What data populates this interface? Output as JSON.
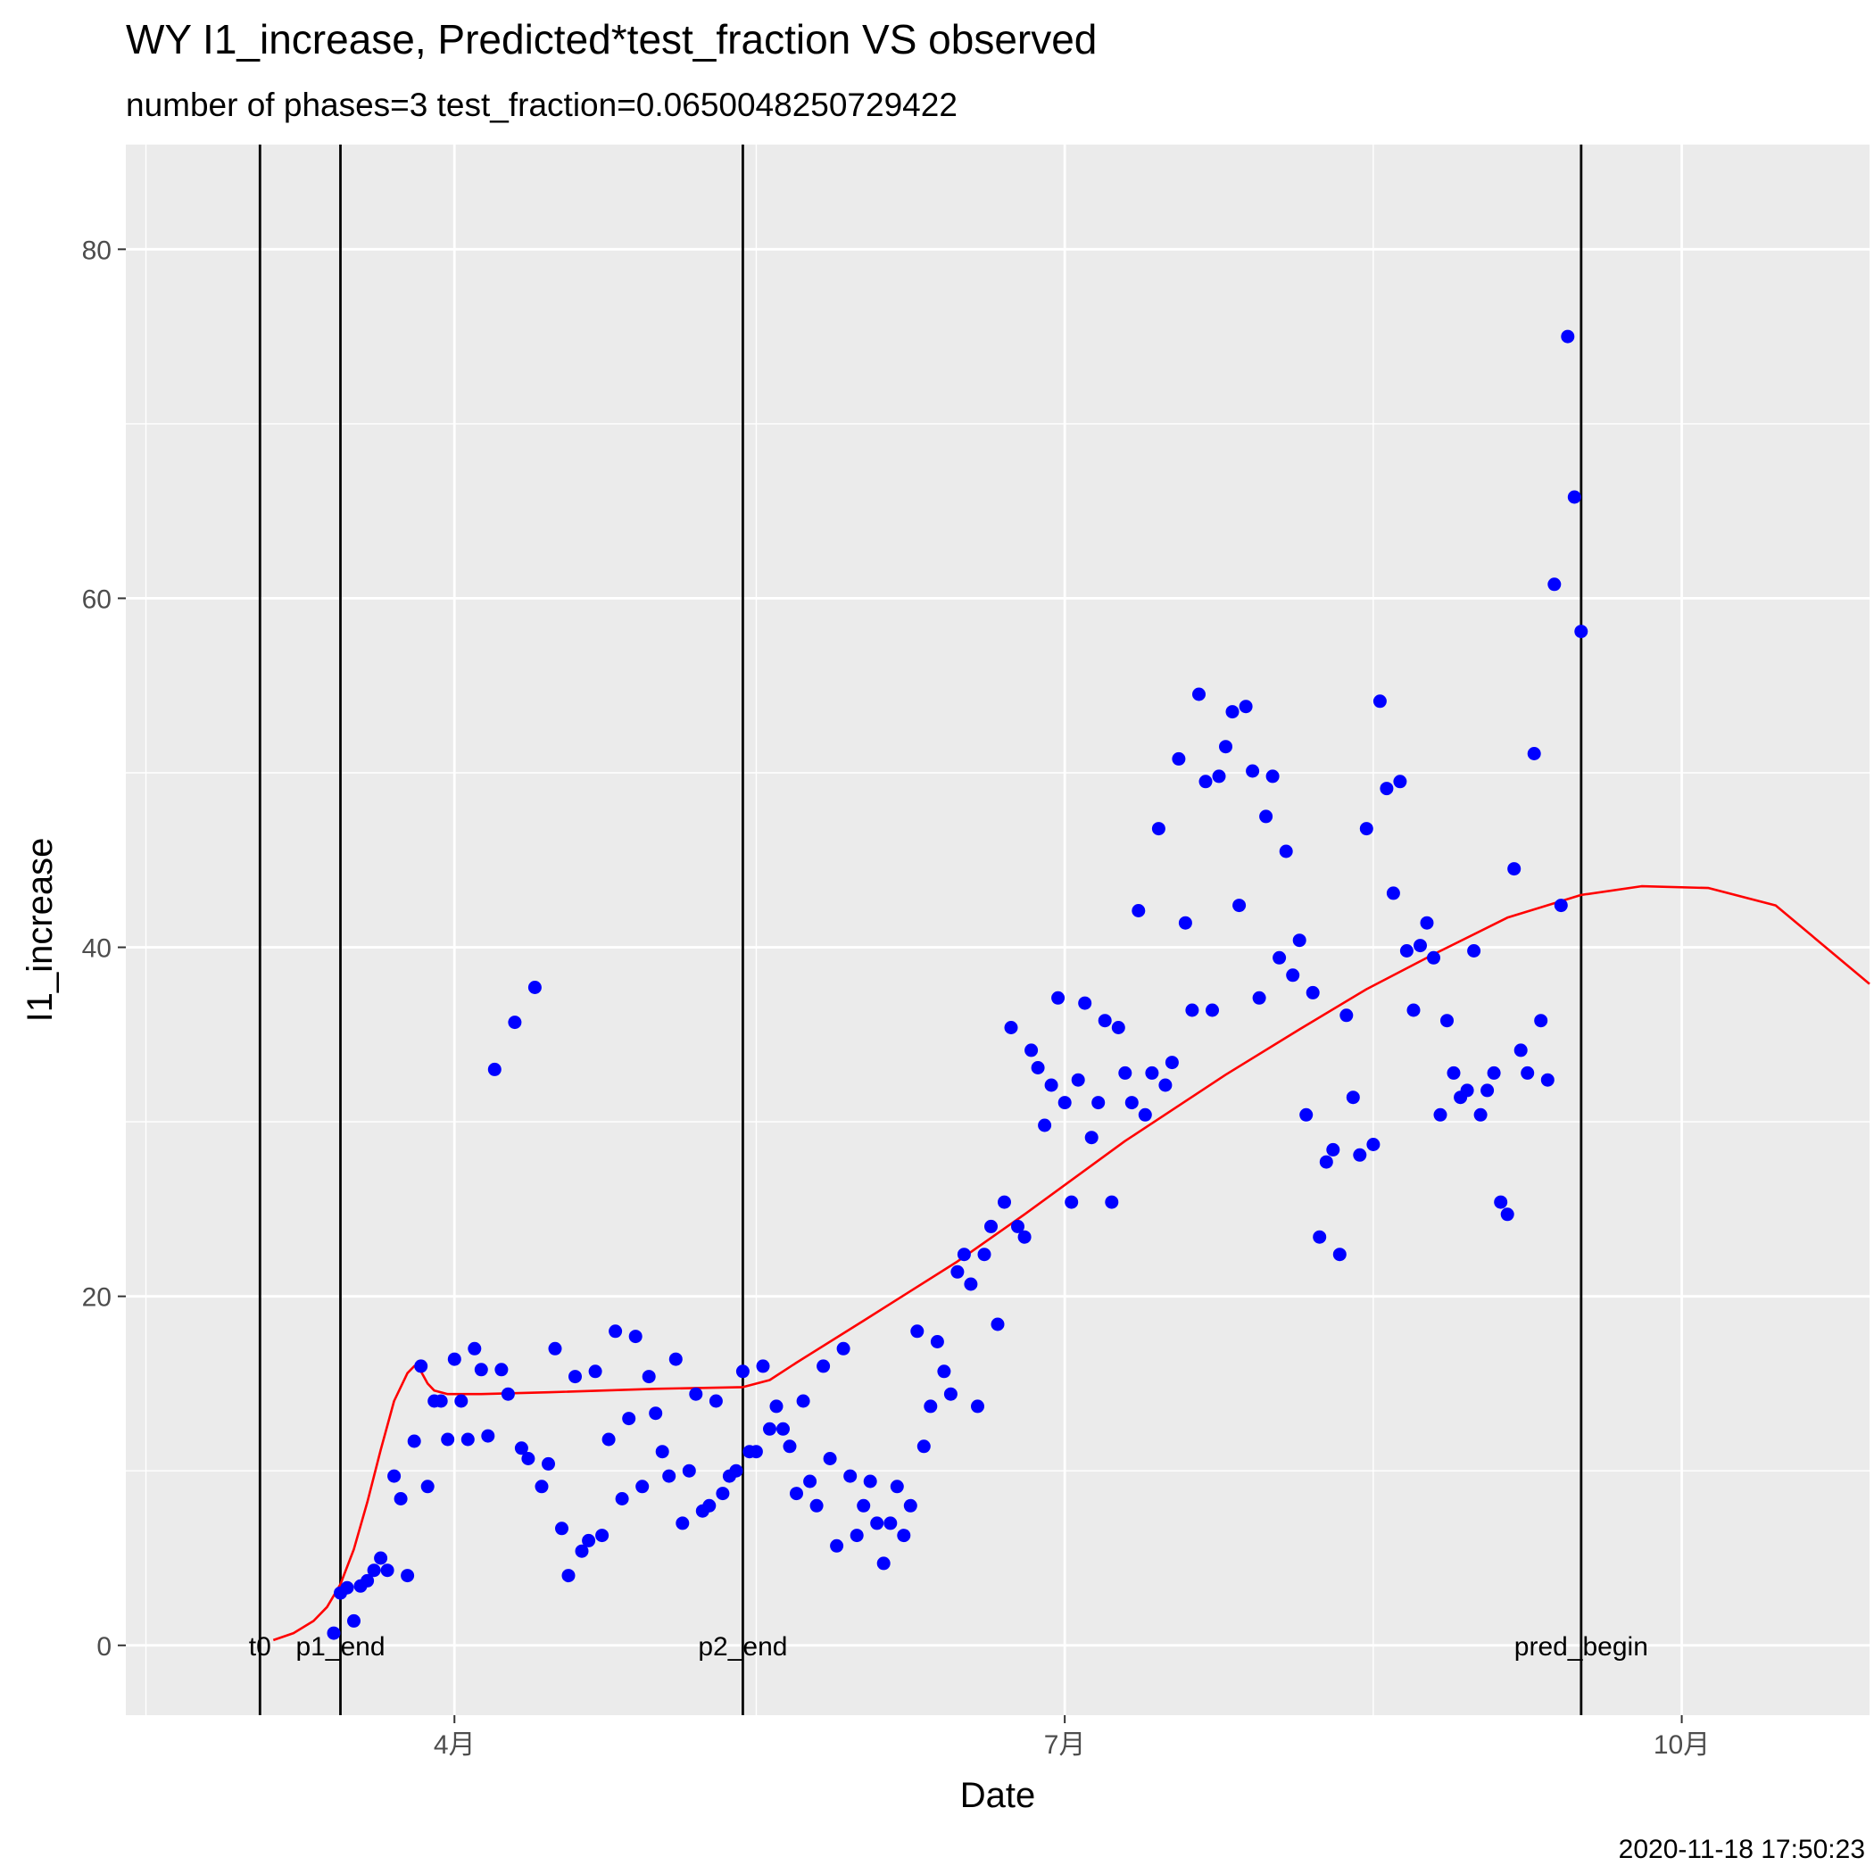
{
  "chart_data": {
    "type": "scatter",
    "title": "WY I1_increase, Predicted*test_fraction VS observed",
    "subtitle": "number of phases=3   test_fraction=0.0650048250729422",
    "xlabel": "Date",
    "ylabel": "I1_increase",
    "caption": "2020-11-18 17:50:23",
    "xlim": [
      "2020-02-12",
      "2020-10-29"
    ],
    "ylim": [
      -4,
      86
    ],
    "grid": true,
    "legend": "none",
    "x_ticks": [
      {
        "date": "2020-04-01",
        "label": "4月"
      },
      {
        "date": "2020-07-01",
        "label": "7月"
      },
      {
        "date": "2020-10-01",
        "label": "10月"
      }
    ],
    "x_minor_ticks": [
      "2020-02-15",
      "2020-05-16",
      "2020-08-16"
    ],
    "y_ticks": [
      0,
      20,
      40,
      60,
      80
    ],
    "y_minor_ticks": [
      10,
      30,
      50,
      70
    ],
    "colors": {
      "panel": "#ebebeb",
      "grid": "#ffffff",
      "observed": "#0000ff",
      "predicted": "#ff0000",
      "phase_line": "#000000"
    },
    "phase_lines": [
      {
        "date": "2020-03-03",
        "label": "t0"
      },
      {
        "date": "2020-03-15",
        "label": "p1_end"
      },
      {
        "date": "2020-05-14",
        "label": "p2_end"
      },
      {
        "date": "2020-09-16",
        "label": "pred_begin"
      }
    ],
    "predicted": {
      "date": [
        "2020-03-05",
        "2020-03-08",
        "2020-03-11",
        "2020-03-13",
        "2020-03-15",
        "2020-03-17",
        "2020-03-19",
        "2020-03-21",
        "2020-03-23",
        "2020-03-25",
        "2020-03-26",
        "2020-03-27",
        "2020-03-28",
        "2020-03-29",
        "2020-03-31",
        "2020-04-05",
        "2020-04-15",
        "2020-05-01",
        "2020-05-14",
        "2020-05-18",
        "2020-05-22",
        "2020-06-01",
        "2020-06-15",
        "2020-06-25",
        "2020-07-10",
        "2020-07-25",
        "2020-08-05",
        "2020-08-15",
        "2020-08-25",
        "2020-09-05",
        "2020-09-16",
        "2020-09-25",
        "2020-10-05",
        "2020-10-15",
        "2020-10-29"
      ],
      "value": [
        0.3,
        0.7,
        1.4,
        2.2,
        3.5,
        5.5,
        8.2,
        11.2,
        14.0,
        15.6,
        16.0,
        15.7,
        15.0,
        14.6,
        14.4,
        14.4,
        14.5,
        14.7,
        14.8,
        15.2,
        16.2,
        18.6,
        22.0,
        24.7,
        28.9,
        32.7,
        35.3,
        37.6,
        39.6,
        41.7,
        43.0,
        43.5,
        43.4,
        42.4,
        37.9
      ]
    },
    "observed": {
      "date": [
        "2020-03-14",
        "2020-03-15",
        "2020-03-16",
        "2020-03-17",
        "2020-03-18",
        "2020-03-19",
        "2020-03-20",
        "2020-03-21",
        "2020-03-22",
        "2020-03-23",
        "2020-03-24",
        "2020-03-25",
        "2020-03-26",
        "2020-03-27",
        "2020-03-28",
        "2020-03-29",
        "2020-03-30",
        "2020-03-31",
        "2020-04-01",
        "2020-04-02",
        "2020-04-03",
        "2020-04-04",
        "2020-04-05",
        "2020-04-06",
        "2020-04-07",
        "2020-04-08",
        "2020-04-09",
        "2020-04-10",
        "2020-04-11",
        "2020-04-12",
        "2020-04-13",
        "2020-04-14",
        "2020-04-15",
        "2020-04-16",
        "2020-04-17",
        "2020-04-18",
        "2020-04-19",
        "2020-04-20",
        "2020-04-21",
        "2020-04-22",
        "2020-04-23",
        "2020-04-24",
        "2020-04-25",
        "2020-04-26",
        "2020-04-27",
        "2020-04-28",
        "2020-04-29",
        "2020-04-30",
        "2020-05-01",
        "2020-05-02",
        "2020-05-03",
        "2020-05-04",
        "2020-05-05",
        "2020-05-06",
        "2020-05-07",
        "2020-05-08",
        "2020-05-09",
        "2020-05-10",
        "2020-05-11",
        "2020-05-12",
        "2020-05-13",
        "2020-05-14",
        "2020-05-15",
        "2020-05-16",
        "2020-05-17",
        "2020-05-18",
        "2020-05-19",
        "2020-05-20",
        "2020-05-21",
        "2020-05-22",
        "2020-05-23",
        "2020-05-24",
        "2020-05-25",
        "2020-05-26",
        "2020-05-27",
        "2020-05-28",
        "2020-05-29",
        "2020-05-30",
        "2020-05-31",
        "2020-06-01",
        "2020-06-02",
        "2020-06-03",
        "2020-06-04",
        "2020-06-05",
        "2020-06-06",
        "2020-06-07",
        "2020-06-08",
        "2020-06-09",
        "2020-06-10",
        "2020-06-11",
        "2020-06-12",
        "2020-06-13",
        "2020-06-14",
        "2020-06-15",
        "2020-06-16",
        "2020-06-17",
        "2020-06-18",
        "2020-06-19",
        "2020-06-20",
        "2020-06-21",
        "2020-06-22",
        "2020-06-23",
        "2020-06-24",
        "2020-06-25",
        "2020-06-26",
        "2020-06-27",
        "2020-06-28",
        "2020-06-29",
        "2020-06-30",
        "2020-07-01",
        "2020-07-02",
        "2020-07-03",
        "2020-07-04",
        "2020-07-05",
        "2020-07-06",
        "2020-07-07",
        "2020-07-08",
        "2020-07-09",
        "2020-07-10",
        "2020-07-11",
        "2020-07-12",
        "2020-07-13",
        "2020-07-14",
        "2020-07-15",
        "2020-07-16",
        "2020-07-17",
        "2020-07-18",
        "2020-07-19",
        "2020-07-20",
        "2020-07-21",
        "2020-07-22",
        "2020-07-23",
        "2020-07-24",
        "2020-07-25",
        "2020-07-26",
        "2020-07-27",
        "2020-07-28",
        "2020-07-29",
        "2020-07-30",
        "2020-07-31",
        "2020-08-01",
        "2020-08-02",
        "2020-08-03",
        "2020-08-04",
        "2020-08-05",
        "2020-08-06",
        "2020-08-07",
        "2020-08-08",
        "2020-08-09",
        "2020-08-10",
        "2020-08-11",
        "2020-08-12",
        "2020-08-13",
        "2020-08-14",
        "2020-08-15",
        "2020-08-16",
        "2020-08-17",
        "2020-08-18",
        "2020-08-19",
        "2020-08-20",
        "2020-08-21",
        "2020-08-22",
        "2020-08-23",
        "2020-08-24",
        "2020-08-25",
        "2020-08-26",
        "2020-08-27",
        "2020-08-28",
        "2020-08-29",
        "2020-08-30",
        "2020-08-31",
        "2020-09-01",
        "2020-09-02",
        "2020-09-03",
        "2020-09-04",
        "2020-09-05",
        "2020-09-06",
        "2020-09-07",
        "2020-09-08",
        "2020-09-09",
        "2020-09-10",
        "2020-09-11",
        "2020-09-12",
        "2020-09-13",
        "2020-09-14",
        "2020-09-15",
        "2020-09-16"
      ],
      "value": [
        0.7,
        3.0,
        3.3,
        1.4,
        3.4,
        3.7,
        4.3,
        5.0,
        4.3,
        9.7,
        8.4,
        4.0,
        11.7,
        16.0,
        9.1,
        14.0,
        14.0,
        11.8,
        16.4,
        14.0,
        11.8,
        17.0,
        15.8,
        12.0,
        33.0,
        15.8,
        14.4,
        35.7,
        11.3,
        10.7,
        37.7,
        9.1,
        10.4,
        17.0,
        6.7,
        4.0,
        15.4,
        5.4,
        6.0,
        15.7,
        6.3,
        11.8,
        18.0,
        8.4,
        13.0,
        17.7,
        9.1,
        15.4,
        13.3,
        11.1,
        9.7,
        16.4,
        7.0,
        10.0,
        14.4,
        7.7,
        8.0,
        14.0,
        8.7,
        9.7,
        10.0,
        15.7,
        11.1,
        11.1,
        16.0,
        12.4,
        13.7,
        12.4,
        11.4,
        8.7,
        14.0,
        9.4,
        8.0,
        16.0,
        10.7,
        5.7,
        17.0,
        9.7,
        6.3,
        8.0,
        9.4,
        7.0,
        4.7,
        7.0,
        9.1,
        6.3,
        8.0,
        18.0,
        11.4,
        13.7,
        17.4,
        15.7,
        14.4,
        21.4,
        22.4,
        20.7,
        13.7,
        22.4,
        24.0,
        18.4,
        25.4,
        35.4,
        24.0,
        23.4,
        34.1,
        33.1,
        29.8,
        32.1,
        37.1,
        31.1,
        25.4,
        32.4,
        36.8,
        29.1,
        31.1,
        35.8,
        25.4,
        35.4,
        32.8,
        31.1,
        42.1,
        30.4,
        32.8,
        46.8,
        32.1,
        33.4,
        50.8,
        41.4,
        36.4,
        54.5,
        49.5,
        36.4,
        49.8,
        51.5,
        53.5,
        42.4,
        53.8,
        50.1,
        37.1,
        47.5,
        49.8,
        39.4,
        45.5,
        38.4,
        40.4,
        30.4,
        37.4,
        23.4,
        27.7,
        28.4,
        22.4,
        36.1,
        31.4,
        28.1,
        46.8,
        28.7,
        54.1,
        49.1,
        43.1,
        49.5,
        39.8,
        36.4,
        40.1,
        41.4,
        39.4,
        30.4,
        35.8,
        32.8,
        31.4,
        31.8,
        39.8,
        30.4,
        31.8,
        32.8,
        25.4,
        24.7,
        44.5,
        34.1,
        32.8,
        51.1,
        35.8,
        32.4,
        60.8,
        42.4,
        75.0,
        65.8,
        58.1
      ]
    }
  }
}
